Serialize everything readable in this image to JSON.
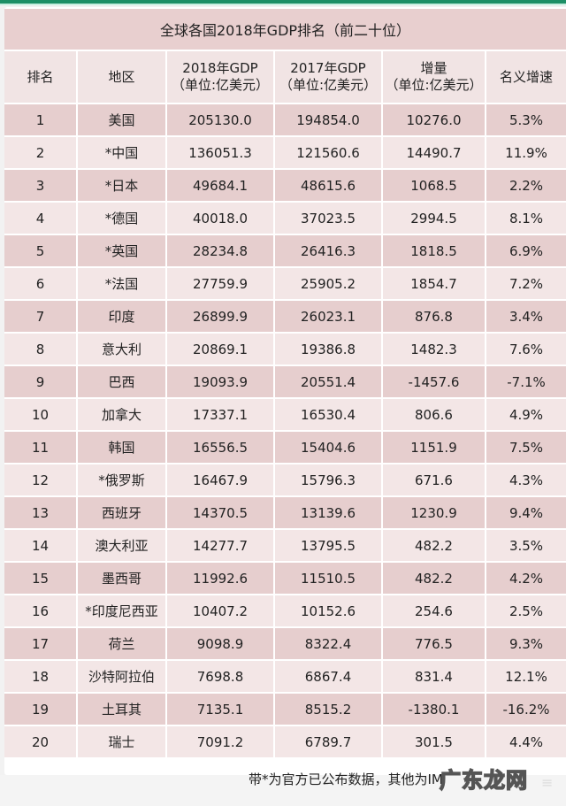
{
  "title": "全球各国2018年GDP排名（前二十位）",
  "columns": [
    {
      "line1": "排名",
      "line2": ""
    },
    {
      "line1": "地区",
      "line2": ""
    },
    {
      "line1": "2018年GDP",
      "line2": "（单位:亿美元）"
    },
    {
      "line1": "2017年GDP",
      "line2": "（单位:亿美元）"
    },
    {
      "line1": "增量",
      "line2": "（单位:亿美元）"
    },
    {
      "line1": "名义增速",
      "line2": ""
    }
  ],
  "rows": [
    {
      "rank": "1",
      "region": "美国",
      "gdp2018": "205130.0",
      "gdp2017": "194854.0",
      "increase": "10276.0",
      "growth": "5.3%"
    },
    {
      "rank": "2",
      "region": "*中国",
      "gdp2018": "136051.3",
      "gdp2017": "121560.6",
      "increase": "14490.7",
      "growth": "11.9%"
    },
    {
      "rank": "3",
      "region": "*日本",
      "gdp2018": "49684.1",
      "gdp2017": "48615.6",
      "increase": "1068.5",
      "growth": "2.2%"
    },
    {
      "rank": "4",
      "region": "*德国",
      "gdp2018": "40018.0",
      "gdp2017": "37023.5",
      "increase": "2994.5",
      "growth": "8.1%"
    },
    {
      "rank": "5",
      "region": "*英国",
      "gdp2018": "28234.8",
      "gdp2017": "26416.3",
      "increase": "1818.5",
      "growth": "6.9%"
    },
    {
      "rank": "6",
      "region": "*法国",
      "gdp2018": "27759.9",
      "gdp2017": "25905.2",
      "increase": "1854.7",
      "growth": "7.2%"
    },
    {
      "rank": "7",
      "region": "印度",
      "gdp2018": "26899.9",
      "gdp2017": "26023.1",
      "increase": "876.8",
      "growth": "3.4%"
    },
    {
      "rank": "8",
      "region": "意大利",
      "gdp2018": "20869.1",
      "gdp2017": "19386.8",
      "increase": "1482.3",
      "growth": "7.6%"
    },
    {
      "rank": "9",
      "region": "巴西",
      "gdp2018": "19093.9",
      "gdp2017": "20551.4",
      "increase": "-1457.6",
      "growth": "-7.1%"
    },
    {
      "rank": "10",
      "region": "加拿大",
      "gdp2018": "17337.1",
      "gdp2017": "16530.4",
      "increase": "806.6",
      "growth": "4.9%"
    },
    {
      "rank": "11",
      "region": "韩国",
      "gdp2018": "16556.5",
      "gdp2017": "15404.6",
      "increase": "1151.9",
      "growth": "7.5%"
    },
    {
      "rank": "12",
      "region": "*俄罗斯",
      "gdp2018": "16467.9",
      "gdp2017": "15796.3",
      "increase": "671.6",
      "growth": "4.3%"
    },
    {
      "rank": "13",
      "region": "西班牙",
      "gdp2018": "14370.5",
      "gdp2017": "13139.6",
      "increase": "1230.9",
      "growth": "9.4%"
    },
    {
      "rank": "14",
      "region": "澳大利亚",
      "gdp2018": "14277.7",
      "gdp2017": "13795.5",
      "increase": "482.2",
      "growth": "3.5%"
    },
    {
      "rank": "15",
      "region": "墨西哥",
      "gdp2018": "11992.6",
      "gdp2017": "11510.5",
      "increase": "482.2",
      "growth": "4.2%"
    },
    {
      "rank": "16",
      "region": "*印度尼西亚",
      "gdp2018": "10407.2",
      "gdp2017": "10152.6",
      "increase": "254.6",
      "growth": "2.5%"
    },
    {
      "rank": "17",
      "region": "荷兰",
      "gdp2018": "9098.9",
      "gdp2017": "8322.4",
      "increase": "776.5",
      "growth": "9.3%"
    },
    {
      "rank": "18",
      "region": "沙特阿拉伯",
      "gdp2018": "7698.8",
      "gdp2017": "6867.4",
      "increase": "831.4",
      "growth": "12.1%"
    },
    {
      "rank": "19",
      "region": "土耳其",
      "gdp2018": "7135.1",
      "gdp2017": "8515.2",
      "increase": "-1380.1",
      "growth": "-16.2%"
    },
    {
      "rank": "20",
      "region": "瑞士",
      "gdp2018": "7091.2",
      "gdp2017": "6789.7",
      "increase": "301.5",
      "growth": "4.4%"
    }
  ],
  "footer_note": "带*为官方已公布数据，其他为IM",
  "watermark": "广东龙网",
  "colors": {
    "top_bar": "#1d8f66",
    "title_bg": "#e8cfcf",
    "header_bg": "#f1e4e4",
    "row_odd": "#e6cece",
    "row_even": "#f3e6e6"
  }
}
